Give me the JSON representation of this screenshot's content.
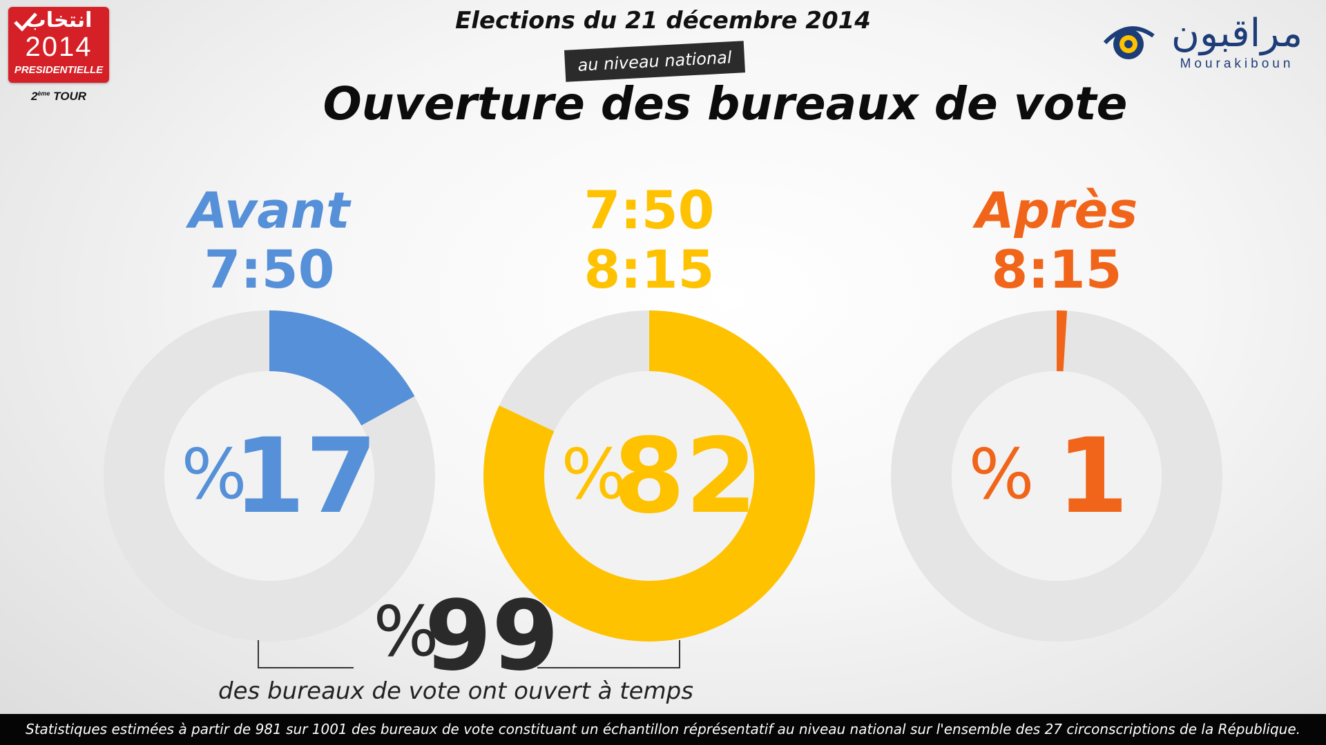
{
  "header": {
    "election_date": "Elections du 21 décembre 2014",
    "scope": "au niveau national",
    "title": "Ouverture des bureaux de vote"
  },
  "logo_left": {
    "arabic": "انتخاب",
    "year": "2014",
    "type": "PRESIDENTIELLE",
    "round_num": "2",
    "round_sup": "ème",
    "round_word": "TOUR"
  },
  "logo_right": {
    "arabic": "مراقبون",
    "latin": "Mourakiboun",
    "icon": "eye-icon"
  },
  "colors": {
    "blue": "#5590d8",
    "yellow": "#fec200",
    "orange": "#f0651a",
    "ring_bg": "#e5e5e5",
    "text_dark": "#222222"
  },
  "chart_data": [
    {
      "type": "donut",
      "label_line1": "Avant",
      "label_line2": "7:50",
      "value": 17,
      "percent_symbol": "%",
      "display": "17",
      "color": "#5590d8"
    },
    {
      "type": "donut",
      "label_line1": "7:50",
      "label_line2": "8:15",
      "value": 82,
      "percent_symbol": "%",
      "display": "82",
      "color": "#fec200"
    },
    {
      "type": "donut",
      "label_line1": "Après",
      "label_line2": "8:15",
      "value": 1,
      "percent_symbol": "%",
      "display": "1",
      "color": "#f0651a"
    }
  ],
  "summary": {
    "value": "99",
    "percent_symbol": "%",
    "text": "des bureaux de vote ont ouvert à temps"
  },
  "footer": {
    "text": "Statistiques estimées à partir de 981 sur 1001 des bureaux de vote constituant un échantillon réprésentatif au niveau national sur l'ensemble des 27 circonscriptions de la République."
  }
}
